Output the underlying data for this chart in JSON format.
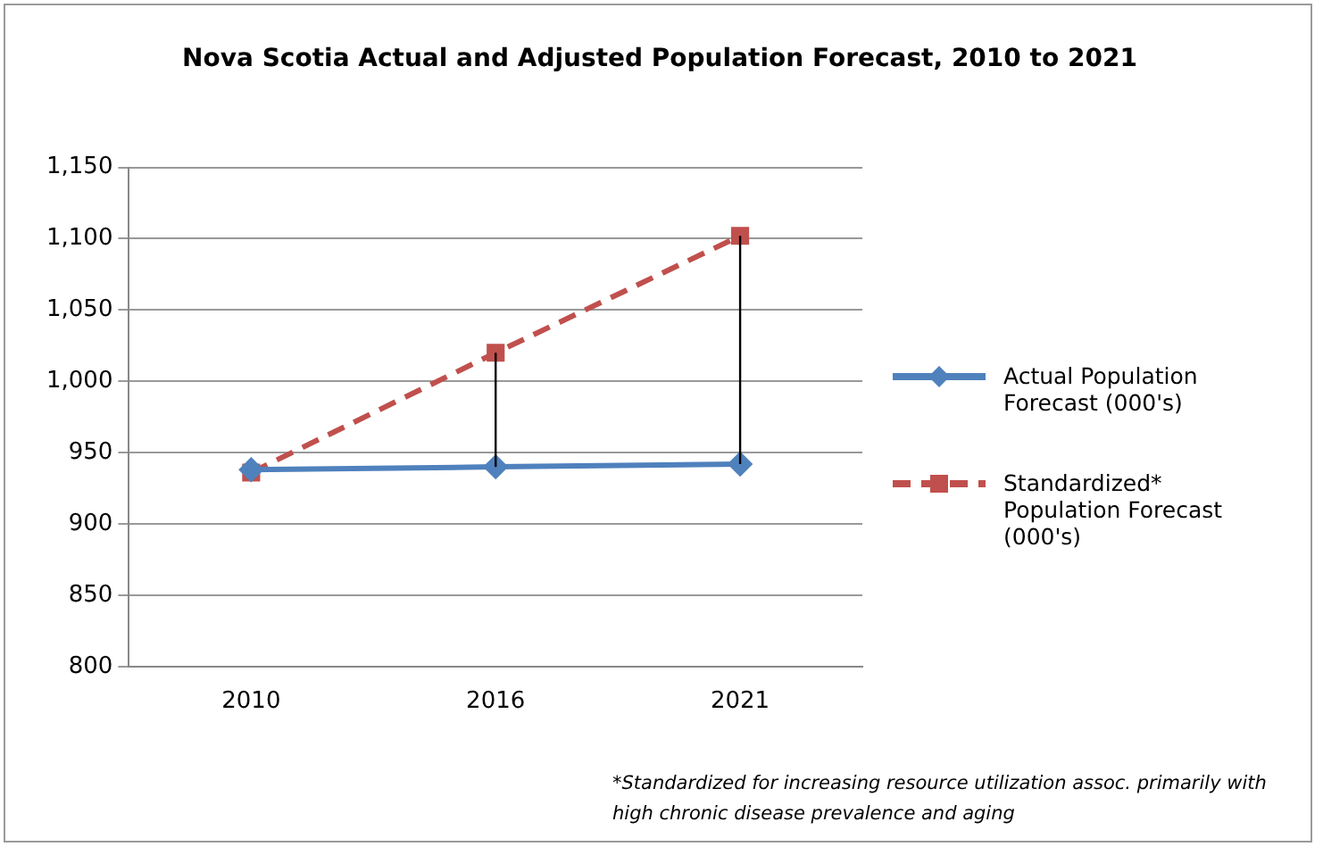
{
  "chart_data": {
    "type": "line",
    "title": "Nova Scotia Actual and Adjusted Population Forecast, 2010 to 2021",
    "categories": [
      "2010",
      "2016",
      "2021"
    ],
    "series": [
      {
        "name": "Actual Population Forecast (000's)",
        "color": "#4f81bd",
        "values": [
          938,
          940,
          942
        ],
        "errors": [
          null,
          [
            940,
            1020
          ],
          [
            942,
            1102
          ]
        ],
        "marker": "diamond",
        "line_style": "solid"
      },
      {
        "name": "Standardized* Population Forecast (000's)",
        "color": "#c0504d",
        "values": [
          936,
          1020,
          1102
        ],
        "marker": "square",
        "line_style": "dashed"
      }
    ],
    "ylim": [
      800,
      1150
    ],
    "yticks": [
      800,
      850,
      900,
      950,
      {
        "value": 1000,
        "label": "1,000"
      },
      {
        "value": 1050,
        "label": "1,050"
      },
      {
        "value": 1100,
        "label": "1,100"
      },
      {
        "value": 1150,
        "label": "1,150"
      }
    ],
    "grid": "y",
    "legend": "right",
    "annotations": [
      "*Standardized for increasing resource utilization assoc. primarily with high chronic disease prevalence and aging"
    ]
  }
}
